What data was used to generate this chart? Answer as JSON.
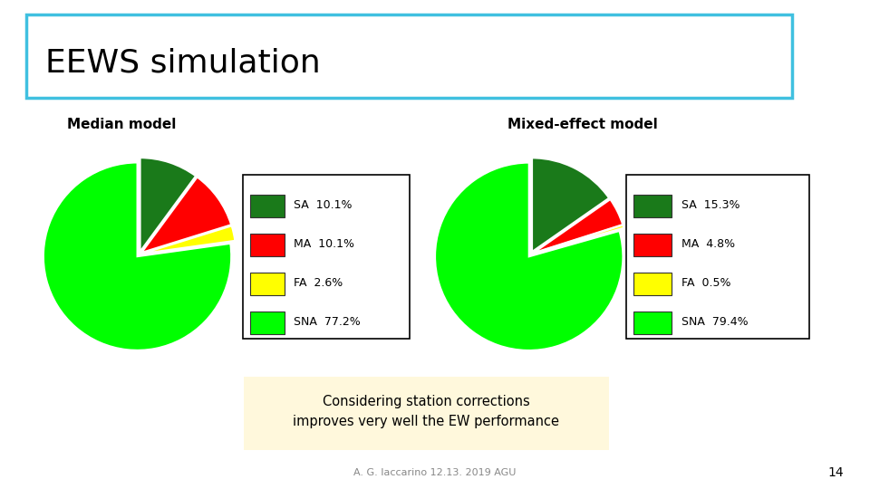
{
  "title": "EEWS simulation",
  "title_fontsize": 26,
  "subtitle_left": "Median model",
  "subtitle_right": "Mixed-effect model",
  "subtitle_fontsize": 11,
  "pie1_labels": [
    "SA",
    "SNA",
    "FA",
    "MA"
  ],
  "pie1_values": [
    10.1,
    77.2,
    2.6,
    10.1
  ],
  "pie1_colors": [
    "#1a7a1a",
    "#00ff00",
    "#ffff00",
    "#ff0000"
  ],
  "pie1_pct": [
    "10.1%",
    "77.2%",
    "2.6%",
    "10.1%"
  ],
  "pie2_labels": [
    "SA",
    "SNA",
    "FA",
    "MA"
  ],
  "pie2_values": [
    15.3,
    79.4,
    0.5,
    4.8
  ],
  "pie2_colors": [
    "#1a7a1a",
    "#00ff00",
    "#ffff00",
    "#ff0000"
  ],
  "pie2_pct": [
    "15.3%",
    "79.4%",
    "0.5%",
    "4.8%"
  ],
  "annotation_text": "Considering station corrections\nimproves very well the EW performance",
  "annotation_bg": "#fff8dc",
  "footer_text": "A. G. Iaccarino 12.13. 2019 AGU",
  "footer_page": "14",
  "title_box_color": "#40c0e0",
  "bg_color": "#ffffff"
}
